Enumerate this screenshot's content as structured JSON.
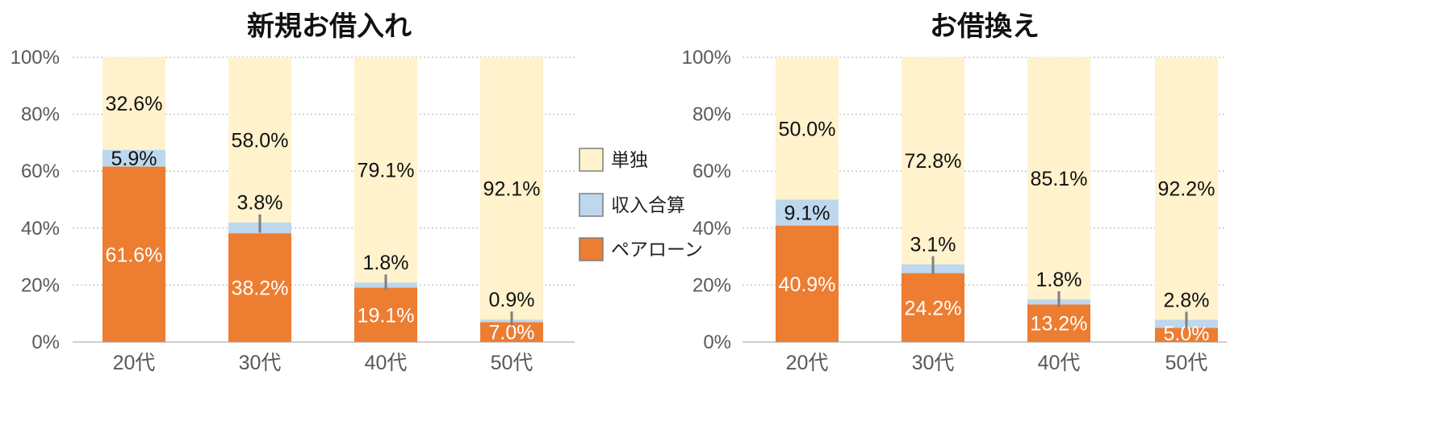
{
  "colors": {
    "single": "#FFF2CC",
    "combined": "#BDD7EE",
    "pair_loan": "#ED7D31",
    "grid": "#BFBFBF",
    "axis": "#BFBFBF",
    "leader": "#7F7F7F",
    "legend_border": "#7F7F7F"
  },
  "legend": {
    "placement": "center",
    "items": [
      {
        "key": "single",
        "label": "単独"
      },
      {
        "key": "combined",
        "label": "収入合算"
      },
      {
        "key": "pair_loan",
        "label": "ペアローン"
      }
    ]
  },
  "chart_data": [
    {
      "type": "bar",
      "stacked": true,
      "title": "新規お借入れ",
      "categories": [
        "20代",
        "30代",
        "40代",
        "50代"
      ],
      "ylim": [
        0,
        100
      ],
      "yticks": [
        "0%",
        "20%",
        "40%",
        "60%",
        "80%",
        "100%"
      ],
      "grid": true,
      "series": [
        {
          "key": "pair_loan",
          "name": "ペアローン",
          "values": [
            61.6,
            38.2,
            19.1,
            7.0
          ],
          "labels": [
            "61.6%",
            "38.2%",
            "19.1%",
            "7.0%"
          ]
        },
        {
          "key": "combined",
          "name": "収入合算",
          "values": [
            5.9,
            3.8,
            1.8,
            0.9
          ],
          "labels": [
            "5.9%",
            "3.8%",
            "1.8%",
            "0.9%"
          ]
        },
        {
          "key": "single",
          "name": "単独",
          "values": [
            32.6,
            58.0,
            79.1,
            92.1
          ],
          "labels": [
            "32.6%",
            "58.0%",
            "79.1%",
            "92.1%"
          ]
        }
      ]
    },
    {
      "type": "bar",
      "stacked": true,
      "title": "お借換え",
      "categories": [
        "20代",
        "30代",
        "40代",
        "50代"
      ],
      "ylim": [
        0,
        100
      ],
      "yticks": [
        "0%",
        "20%",
        "40%",
        "60%",
        "80%",
        "100%"
      ],
      "grid": true,
      "series": [
        {
          "key": "pair_loan",
          "name": "ペアローン",
          "values": [
            40.9,
            24.2,
            13.2,
            5.0
          ],
          "labels": [
            "40.9%",
            "24.2%",
            "13.2%",
            "5.0%"
          ]
        },
        {
          "key": "combined",
          "name": "収入合算",
          "values": [
            9.1,
            3.1,
            1.8,
            2.8
          ],
          "labels": [
            "9.1%",
            "3.1%",
            "1.8%",
            "2.8%"
          ]
        },
        {
          "key": "single",
          "name": "単独",
          "values": [
            50.0,
            72.8,
            85.1,
            92.2
          ],
          "labels": [
            "50.0%",
            "72.8%",
            "85.1%",
            "92.2%"
          ]
        }
      ]
    }
  ]
}
